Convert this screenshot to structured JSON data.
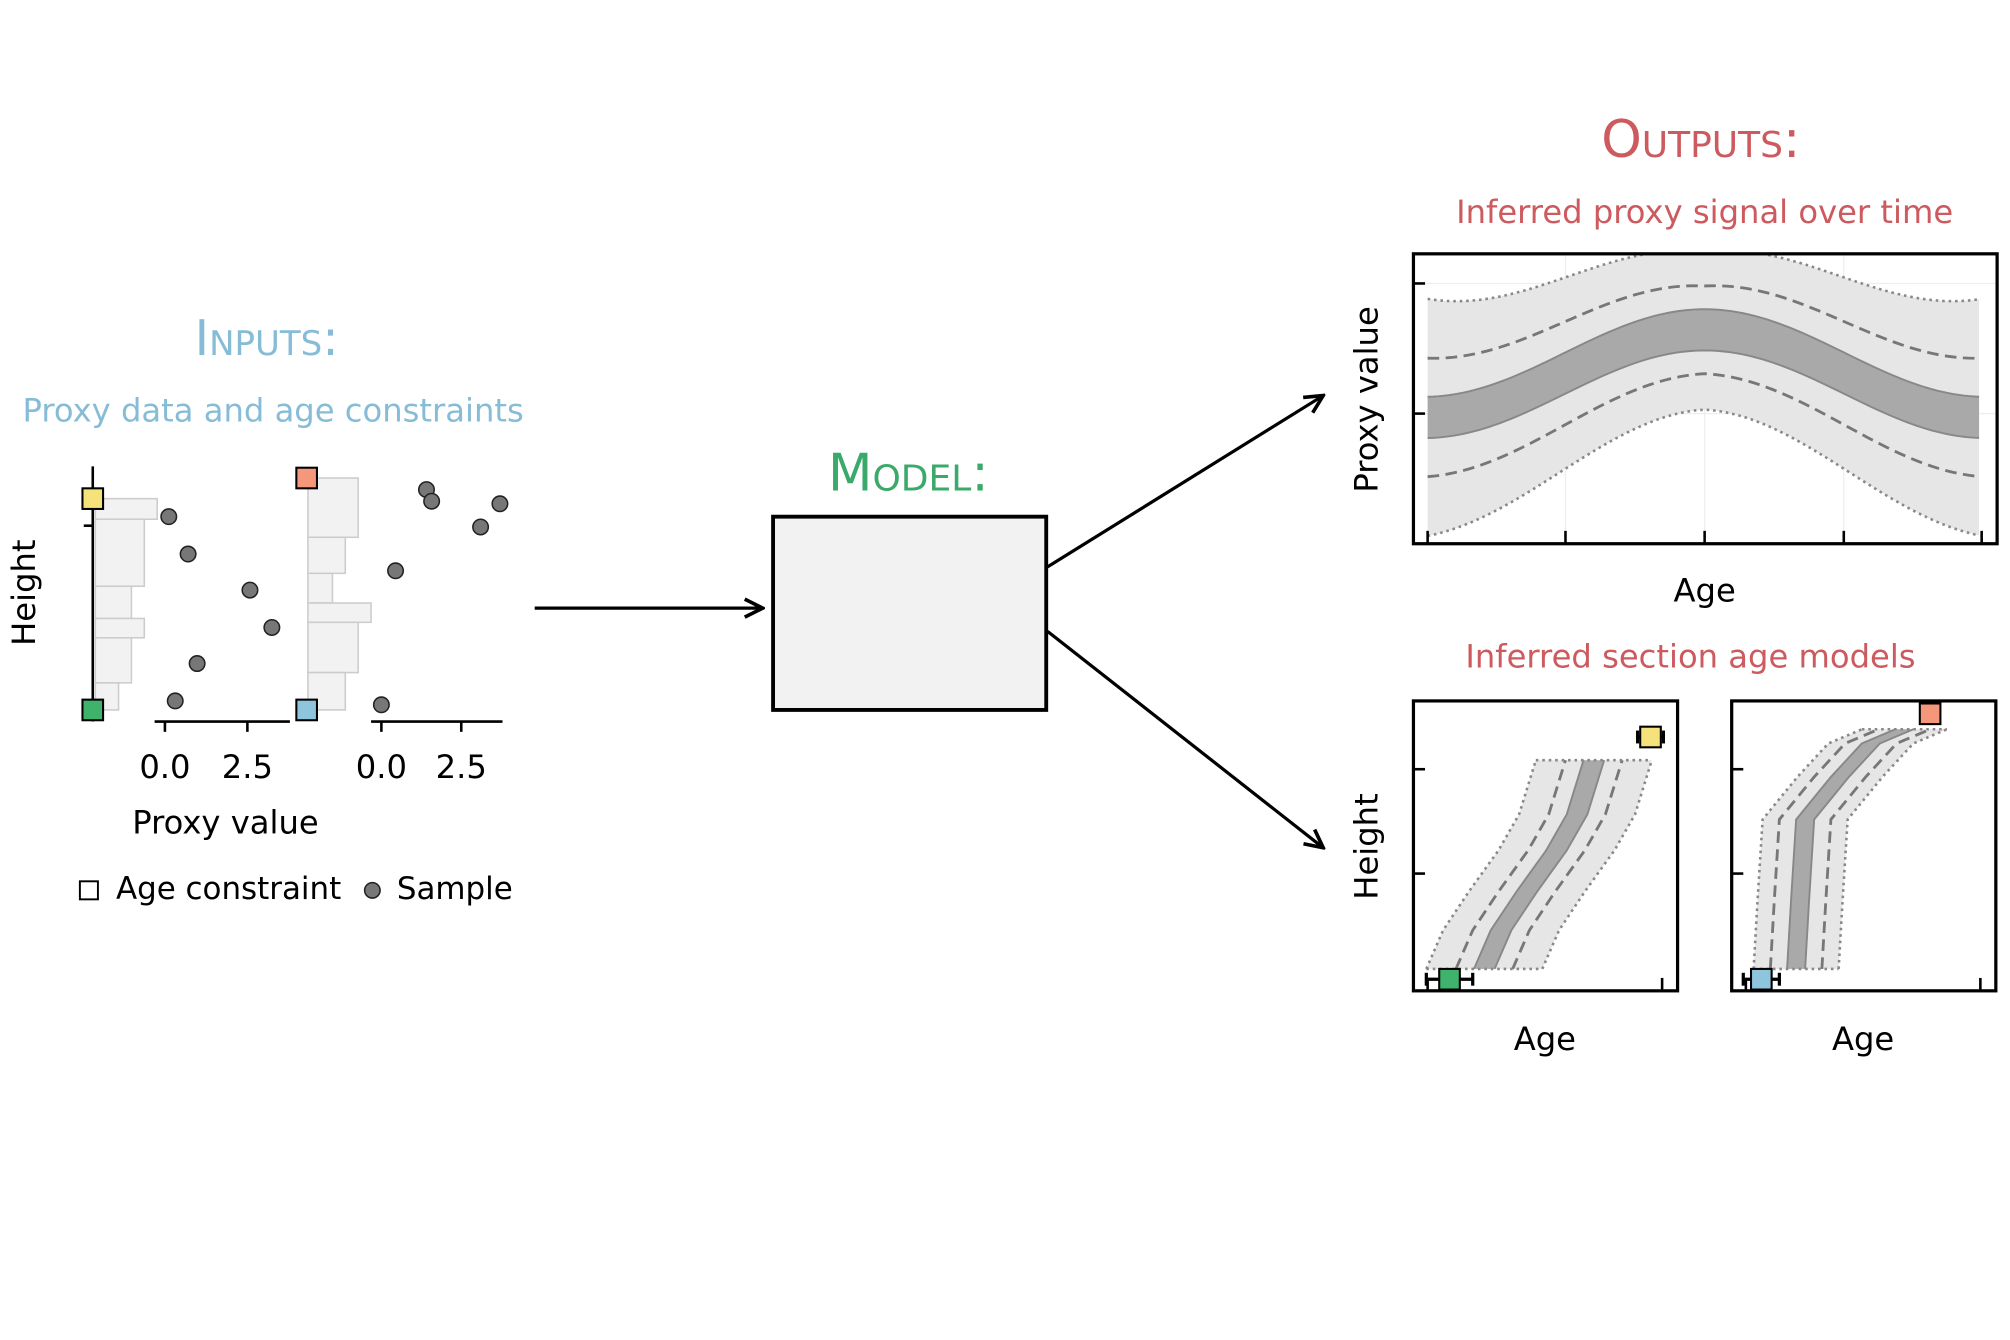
{
  "inputs": {
    "title": "Inputs:",
    "subtitle": "Proxy data and age constraints",
    "y_label": "Height",
    "x_label": "Proxy value",
    "x_ticks": [
      "0.0",
      "2.5",
      "0.0",
      "2.5"
    ],
    "legend": [
      "Age constraint",
      "Sample"
    ]
  },
  "model": {
    "title": "Model:"
  },
  "outputs": {
    "title": "Outputs:",
    "signal": {
      "title": "Inferred proxy signal over time",
      "y_label": "Proxy value",
      "x_label": "Age"
    },
    "age_models": {
      "title": "Inferred section age models",
      "y_label": "Height",
      "x_labels": [
        "Age",
        "Age"
      ]
    }
  }
}
